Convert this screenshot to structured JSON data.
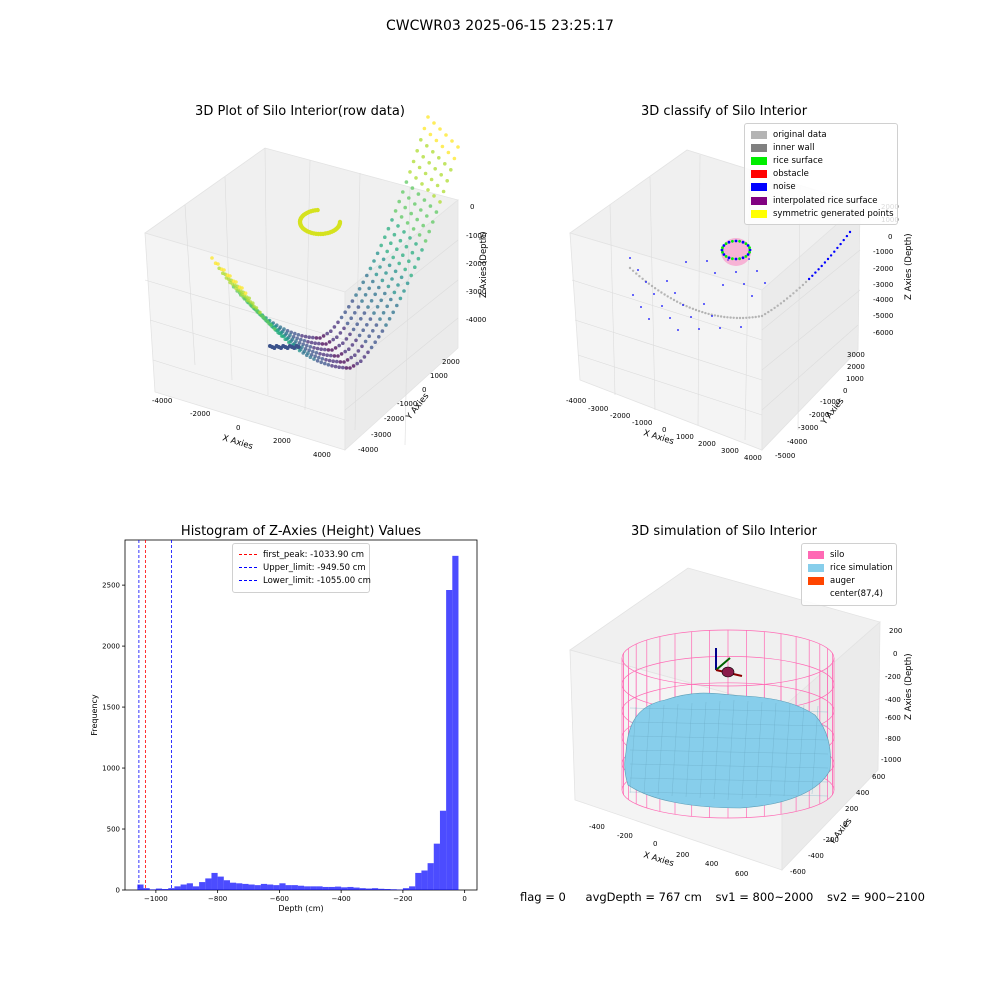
{
  "figure": {
    "suptitle": "CWCWR03 2025-06-15 23:25:17"
  },
  "chart_data": [
    {
      "type": "scatter",
      "title": "3D Plot of Silo Interior(row data)",
      "xlabel": "X Axies",
      "ylabel": "Y Axies",
      "zlabel": "Z Axies (Depth)",
      "x_ticks": [
        "-4000",
        "-2000",
        "0",
        "2000",
        "4000"
      ],
      "y_ticks": [
        "-4000",
        "-3000",
        "-2000",
        "-1000",
        "0",
        "1000",
        "2000"
      ],
      "z_ticks": [
        "0",
        "-1000",
        "-2000",
        "-3000",
        "-4000"
      ],
      "colormap": "viridis"
    },
    {
      "type": "scatter",
      "title": "3D classify of Silo Interior",
      "xlabel": "X Axies",
      "ylabel": "Y Axies",
      "zlabel": "Z Axies (Depth)",
      "x_ticks": [
        "-4000",
        "-3000",
        "-2000",
        "-1000",
        "0",
        "1000",
        "2000",
        "3000",
        "4000"
      ],
      "y_ticks": [
        "-5000",
        "-4000",
        "-3000",
        "-2000",
        "-1000",
        "0",
        "1000",
        "2000",
        "3000"
      ],
      "z_ticks": [
        "2000",
        "1000",
        "0",
        "-1000",
        "-2000",
        "-3000",
        "-4000",
        "-5000",
        "-6000"
      ],
      "legend": [
        {
          "label": "original data",
          "color": "#b4b4b4"
        },
        {
          "label": "inner wall",
          "color": "#808080"
        },
        {
          "label": "rice surface",
          "color": "#00ee00"
        },
        {
          "label": "obstacle",
          "color": "#ff0000"
        },
        {
          "label": "noise",
          "color": "#0000ff"
        },
        {
          "label": "interpolated rice surface",
          "color": "#800080"
        },
        {
          "label": "symmetric generated points",
          "color": "#ffff00"
        }
      ]
    },
    {
      "type": "histogram",
      "title": "Histogram of Z-Axies (Height) Values",
      "xlabel": "Depth (cm)",
      "ylabel": "Frequency",
      "xlim": [
        -1100,
        40
      ],
      "ylim": [
        0,
        2870
      ],
      "x_ticks": [
        -1000,
        -800,
        -600,
        -400,
        -200,
        0
      ],
      "y_ticks": [
        0,
        500,
        1000,
        1500,
        2000,
        2500
      ],
      "bin_width": 20,
      "bins": [
        [
          -1060,
          45
        ],
        [
          -1040,
          15
        ],
        [
          -1020,
          5
        ],
        [
          -1000,
          12
        ],
        [
          -980,
          8
        ],
        [
          -960,
          15
        ],
        [
          -940,
          30
        ],
        [
          -920,
          45
        ],
        [
          -900,
          55
        ],
        [
          -880,
          30
        ],
        [
          -860,
          65
        ],
        [
          -840,
          95
        ],
        [
          -820,
          140
        ],
        [
          -800,
          110
        ],
        [
          -780,
          80
        ],
        [
          -760,
          60
        ],
        [
          -740,
          55
        ],
        [
          -720,
          50
        ],
        [
          -700,
          45
        ],
        [
          -680,
          40
        ],
        [
          -660,
          50
        ],
        [
          -640,
          45
        ],
        [
          -620,
          40
        ],
        [
          -600,
          55
        ],
        [
          -580,
          40
        ],
        [
          -560,
          40
        ],
        [
          -540,
          35
        ],
        [
          -520,
          30
        ],
        [
          -500,
          30
        ],
        [
          -480,
          30
        ],
        [
          -460,
          25
        ],
        [
          -440,
          25
        ],
        [
          -420,
          28
        ],
        [
          -400,
          22
        ],
        [
          -380,
          25
        ],
        [
          -360,
          20
        ],
        [
          -340,
          15
        ],
        [
          -320,
          12
        ],
        [
          -300,
          15
        ],
        [
          -280,
          10
        ],
        [
          -260,
          8
        ],
        [
          -240,
          6
        ],
        [
          -220,
          4
        ],
        [
          -200,
          15
        ],
        [
          -180,
          30
        ],
        [
          -160,
          140
        ],
        [
          -140,
          160
        ],
        [
          -120,
          220
        ],
        [
          -100,
          380
        ],
        [
          -80,
          650
        ],
        [
          -60,
          2460
        ],
        [
          -40,
          2740
        ],
        [
          -20,
          0
        ]
      ],
      "bar_color": "#0000ff",
      "lines": [
        {
          "label": "first_peak: -1033.90 cm",
          "value": -1033.9,
          "color": "#ff0000"
        },
        {
          "label": "Upper_limit: -949.50 cm",
          "value": -949.5,
          "color": "#0000ff"
        },
        {
          "label": "Lower_limit: -1055.00 cm",
          "value": -1055.0,
          "color": "#0000ff"
        }
      ]
    },
    {
      "type": "surface",
      "title": "3D simulation of Silo Interior",
      "xlabel": "X Axies",
      "ylabel": "Y Axies",
      "zlabel": "Z Axies (Depth)",
      "x_ticks": [
        "-400",
        "-200",
        "0",
        "200",
        "400",
        "600"
      ],
      "y_ticks": [
        "-600",
        "-400",
        "-200",
        "0",
        "200",
        "400",
        "600"
      ],
      "z_ticks": [
        "200",
        "0",
        "-200",
        "-400",
        "-600",
        "-800",
        "-1000"
      ],
      "legend": [
        {
          "label": "silo",
          "color": "#ff69b4"
        },
        {
          "label": "rice simulation",
          "color": "#87ceeb"
        },
        {
          "label": "auger",
          "color": "#ff4500"
        },
        {
          "label": "center(87,4)",
          "color": ""
        }
      ]
    }
  ],
  "footer": {
    "flag": "flag = 0",
    "avg_depth": "avgDepth = 767 cm",
    "sv1": "sv1 = 800~2000",
    "sv2": "sv2 = 900~2100"
  }
}
